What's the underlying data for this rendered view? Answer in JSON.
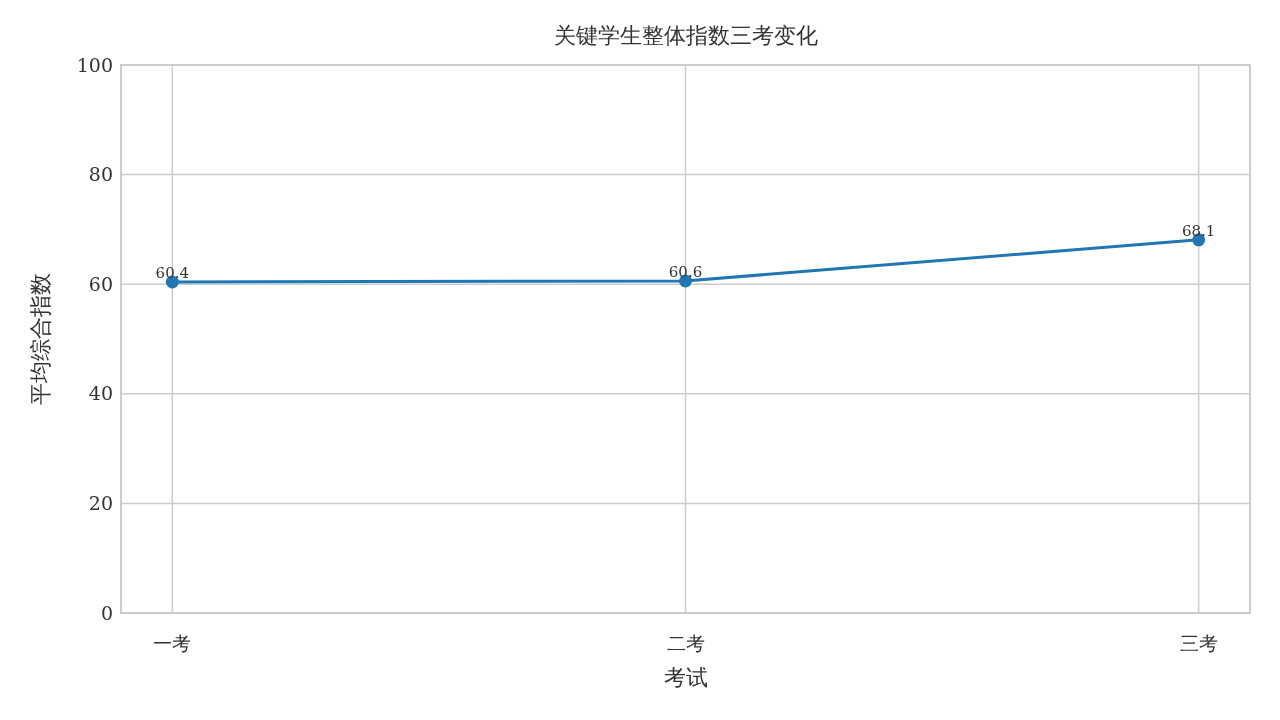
{
  "chart_data": {
    "type": "line",
    "title": "关键学生整体指数三考变化",
    "xlabel": "考试",
    "ylabel": "平均综合指数",
    "categories": [
      "一考",
      "二考",
      "三考"
    ],
    "series": [
      {
        "color": "#1f77b4",
        "values": [
          60.4,
          60.6,
          68.1
        ]
      }
    ],
    "ylim": [
      0,
      100
    ],
    "yticks": [
      0,
      20,
      40,
      60,
      80,
      100
    ],
    "grid": true,
    "marker": "circle",
    "line_style": "solid",
    "data_labels": true
  }
}
